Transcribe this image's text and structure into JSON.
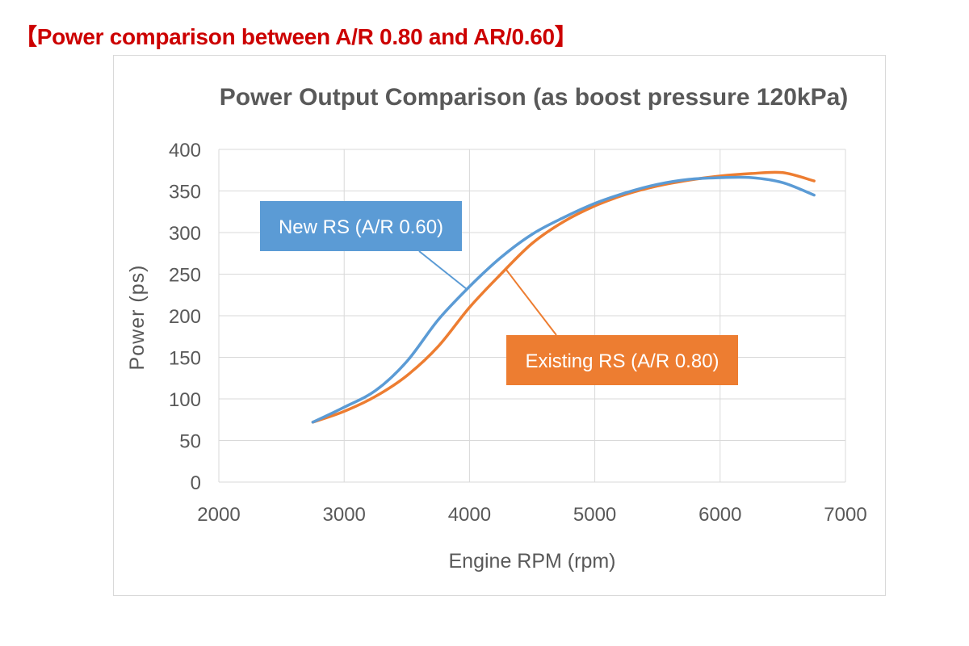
{
  "page": {
    "heading": "【Power comparison between A/R 0.80 and AR/0.60】",
    "heading_color": "#cc0000"
  },
  "chart_data": {
    "type": "line",
    "title": "Power Output Comparison (as boost pressure 120kPa)",
    "xlabel": "Engine RPM (rpm)",
    "ylabel": "Power (ps)",
    "xlim": [
      2000,
      7000
    ],
    "ylim": [
      0,
      400
    ],
    "x_ticks": [
      2000,
      3000,
      4000,
      5000,
      6000,
      7000
    ],
    "y_ticks": [
      0,
      50,
      100,
      150,
      200,
      250,
      300,
      350,
      400
    ],
    "grid": true,
    "legend": "callouts",
    "series": [
      {
        "name": "New RS (A/R 0.60)",
        "color": "#5b9bd5",
        "label_anchor_x": 3980,
        "x": [
          2750,
          3000,
          3250,
          3500,
          3750,
          4000,
          4250,
          4500,
          4750,
          5000,
          5250,
          5500,
          5750,
          6000,
          6250,
          6500,
          6750
        ],
        "y": [
          72,
          90,
          110,
          145,
          195,
          235,
          270,
          298,
          318,
          335,
          348,
          358,
          364,
          366,
          366,
          360,
          345
        ]
      },
      {
        "name": "Existing RS (A/R 0.80)",
        "color": "#ed7d31",
        "label_anchor_x": 4290,
        "x": [
          2750,
          3000,
          3250,
          3500,
          3750,
          4000,
          4250,
          4500,
          4750,
          5000,
          5250,
          5500,
          5750,
          6000,
          6250,
          6500,
          6750
        ],
        "y": [
          72,
          85,
          103,
          128,
          163,
          210,
          250,
          287,
          313,
          332,
          346,
          356,
          363,
          368,
          371,
          372,
          362
        ]
      }
    ]
  }
}
